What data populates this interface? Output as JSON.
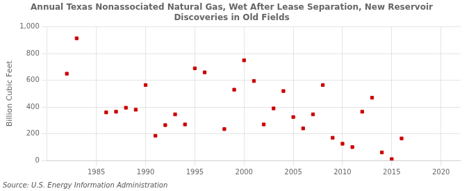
{
  "chart_data": {
    "type": "scatter",
    "title": "Annual Texas Nonassociated Natural Gas, Wet After Lease Separation, New Reservoir\nDiscoveries in Old Fields",
    "ylabel": "Billion Cubic Feet",
    "source": "Source: U.S. Energy Information Administration",
    "x": [
      1982,
      1983,
      1986,
      1987,
      1988,
      1989,
      1990,
      1991,
      1992,
      1993,
      1994,
      1995,
      1996,
      1998,
      1999,
      2000,
      2001,
      2002,
      2003,
      2004,
      2005,
      2006,
      2007,
      2008,
      2009,
      2010,
      2011,
      2012,
      2013,
      2014,
      2015,
      2016
    ],
    "values": [
      650,
      915,
      360,
      365,
      395,
      380,
      565,
      185,
      265,
      345,
      270,
      690,
      660,
      235,
      530,
      750,
      595,
      270,
      390,
      520,
      325,
      240,
      345,
      565,
      170,
      125,
      100,
      365,
      470,
      60,
      10,
      165
    ],
    "color": "#cc0000",
    "marker": "square",
    "xlim": [
      1980,
      2022
    ],
    "xticks": [
      1985,
      1990,
      1995,
      2000,
      2005,
      2010,
      2015,
      2020
    ],
    "ylim": [
      0,
      1000
    ],
    "yticks": [
      0,
      200,
      400,
      600,
      800,
      {
        "value": 1000,
        "label": "1,000"
      }
    ],
    "grid": true
  }
}
